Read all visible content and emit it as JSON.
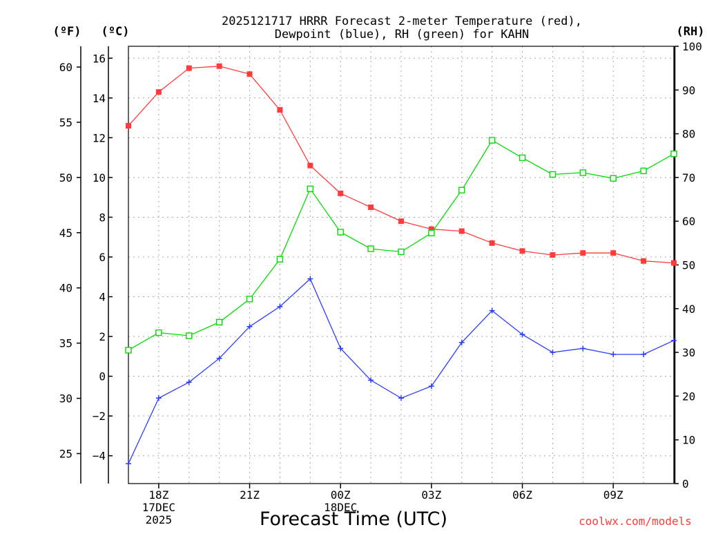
{
  "chart_data": {
    "type": "line",
    "title_line1": "2025121717 HRRR Forecast 2-meter Temperature (red),",
    "title_line2": "Dewpoint (blue), RH (green) for KAHN",
    "xlabel": "Forecast Time (UTC)",
    "credit": "coolwx.com/models",
    "units": {
      "fahrenheit": "(ºF)",
      "celsius": "(ºC)",
      "rh": "(RH)"
    },
    "x_hours": [
      17,
      18,
      19,
      20,
      21,
      22,
      23,
      24,
      25,
      26,
      27,
      28,
      29,
      30,
      31,
      32,
      33,
      34,
      35
    ],
    "xlim": [
      17,
      35
    ],
    "x_ticks": [
      {
        "hour": 18,
        "lines": [
          "18Z",
          "17DEC",
          "2025"
        ]
      },
      {
        "hour": 21,
        "lines": [
          "21Z"
        ]
      },
      {
        "hour": 24,
        "lines": [
          "00Z",
          "18DEC"
        ]
      },
      {
        "hour": 27,
        "lines": [
          "03Z"
        ]
      },
      {
        "hour": 30,
        "lines": [
          "06Z"
        ]
      },
      {
        "hour": 33,
        "lines": [
          "09Z"
        ]
      }
    ],
    "celsius_axis": {
      "ylim": [
        -5.4,
        16.6
      ],
      "ticks": [
        -4,
        -2,
        0,
        2,
        4,
        6,
        8,
        10,
        12,
        14,
        16
      ],
      "labels": [
        "−4",
        "−2",
        "0",
        "2",
        "4",
        "6",
        "8",
        "10",
        "12",
        "14",
        "16"
      ]
    },
    "fahrenheit_axis": {
      "ticks": [
        25,
        30,
        35,
        40,
        45,
        50,
        55,
        60
      ]
    },
    "rh_axis": {
      "ylim": [
        0,
        100
      ],
      "ticks": [
        0,
        10,
        20,
        30,
        40,
        50,
        60,
        70,
        80,
        90,
        100
      ]
    },
    "series": [
      {
        "name": "Temperature",
        "axis": "celsius",
        "color": "#ff3b3b",
        "marker": "filled-square",
        "values": [
          12.6,
          14.3,
          15.5,
          15.6,
          15.2,
          13.4,
          10.6,
          9.2,
          8.5,
          7.8,
          7.4,
          7.3,
          6.7,
          6.3,
          6.1,
          6.2,
          6.2,
          5.8,
          5.7
        ]
      },
      {
        "name": "Dewpoint",
        "axis": "celsius",
        "color": "#2a3cff",
        "marker": "plus",
        "values": [
          -4.4,
          -1.1,
          -0.3,
          0.9,
          2.5,
          3.5,
          4.9,
          1.4,
          -0.2,
          -1.1,
          -0.5,
          1.7,
          3.3,
          2.1,
          1.2,
          1.4,
          1.1,
          1.1,
          1.8
        ]
      },
      {
        "name": "RH",
        "axis": "rh",
        "color": "#00dd00",
        "marker": "open-square",
        "values": [
          30.5,
          34.5,
          33.8,
          36.9,
          42.2,
          51.3,
          67.4,
          57.5,
          53.7,
          53.0,
          57.3,
          67.1,
          78.5,
          74.5,
          70.7,
          71.1,
          69.8,
          71.5,
          75.4
        ]
      }
    ]
  }
}
